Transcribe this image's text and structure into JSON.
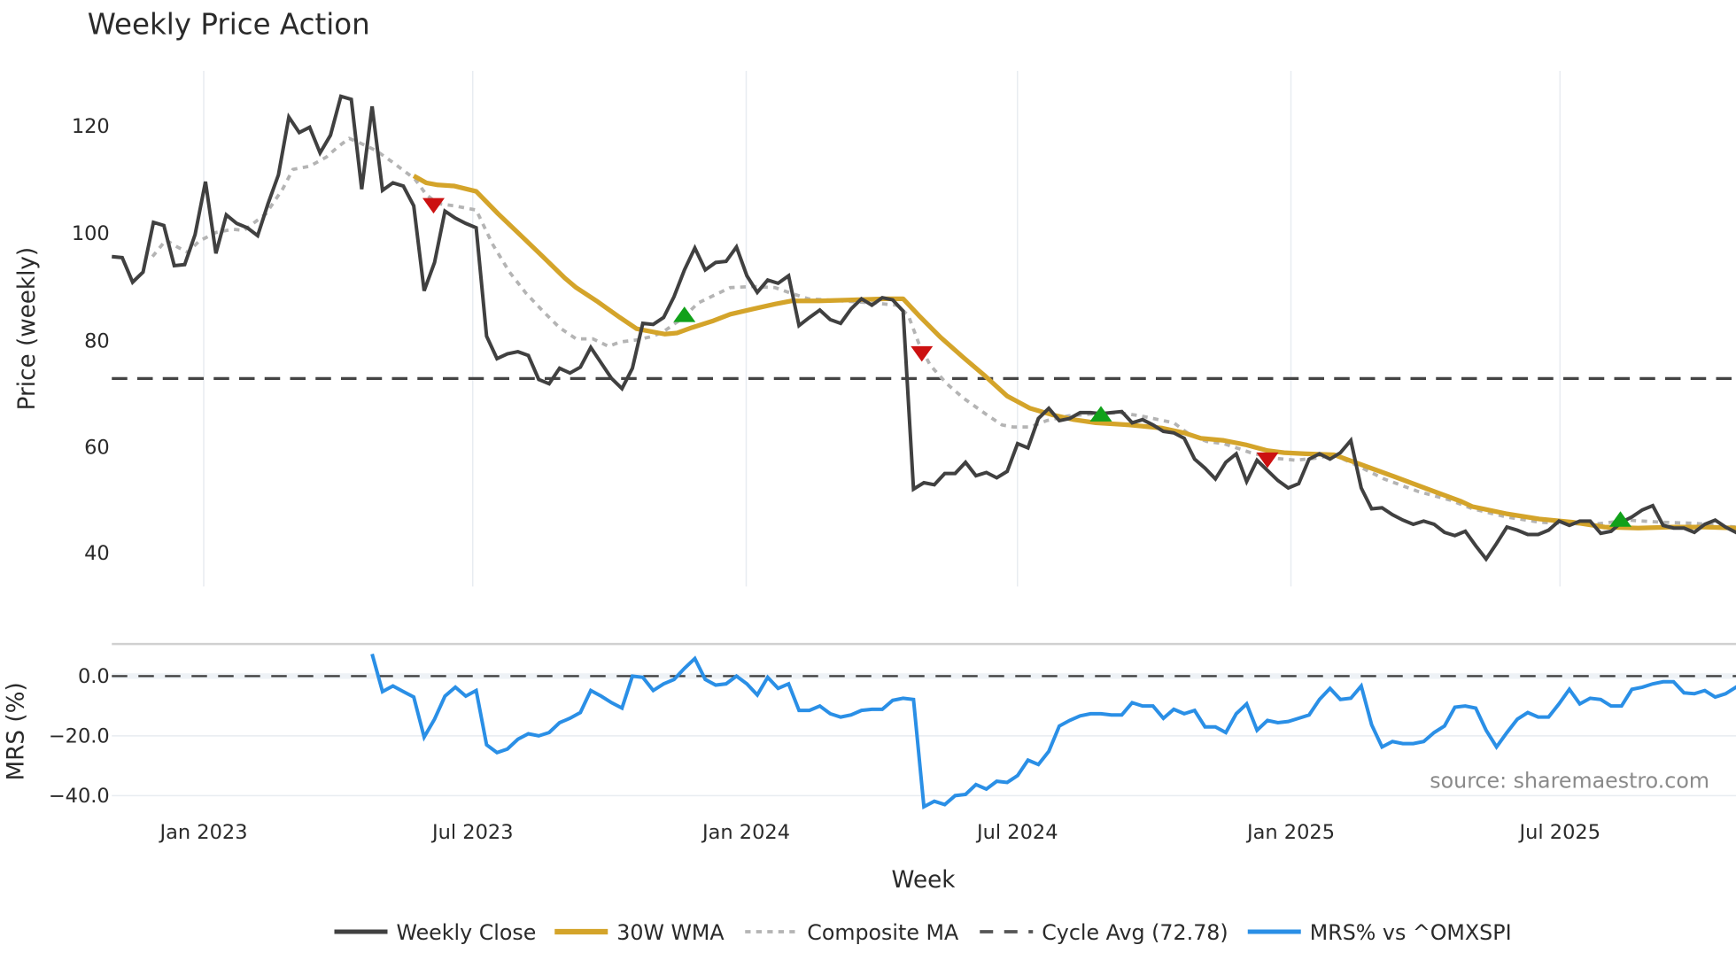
{
  "chart_data": {
    "type": "line",
    "title": "Weekly Price Action",
    "panels": [
      {
        "name": "price",
        "ylabel": "Price (weekly)",
        "yticks": [
          40,
          60,
          80,
          100,
          120
        ],
        "ylim": [
          33,
          130
        ],
        "reference_line": {
          "label": "Cycle Avg (72.78)",
          "value": 72.78,
          "style": "dashed",
          "color": "#444444"
        }
      },
      {
        "name": "mrs",
        "ylabel": "MRS (%)",
        "yticks": [
          0.0,
          -20.0,
          -40.0
        ],
        "ytick_labels": [
          "0.0",
          "−20.0",
          "−40.0"
        ],
        "ylim": [
          -46,
          11
        ],
        "reference_line": {
          "value": 0.0,
          "style": "dashed",
          "color": "#444444"
        }
      }
    ],
    "xlabel": "Week",
    "x_ticks": [
      {
        "label": "Jan 2023",
        "week_index": 8.8
      },
      {
        "label": "Jul 2023",
        "week_index": 34.7
      },
      {
        "label": "Jan 2024",
        "week_index": 60.9
      },
      {
        "label": "Jul 2024",
        "week_index": 87.0
      },
      {
        "label": "Jan 2025",
        "week_index": 113.3
      },
      {
        "label": "Jul 2025",
        "week_index": 139.1
      }
    ],
    "x_range_weeks": [
      0,
      156
    ],
    "series": [
      {
        "name": "Weekly Close",
        "color": "#404040",
        "style": "solid",
        "panel": "price",
        "start_index": 0,
        "values": [
          95.6,
          95.4,
          90.8,
          92.7,
          102.0,
          101.4,
          93.9,
          94.1,
          99.7,
          109.6,
          96.2,
          103.4,
          101.8,
          101.0,
          99.5,
          105.5,
          110.9,
          121.7,
          118.8,
          119.8,
          115.0,
          118.3,
          125.6,
          125.0,
          108.2,
          123.7,
          108.0,
          109.4,
          108.8,
          105.1,
          89.2,
          94.5,
          104.1,
          102.8,
          101.8,
          101.0,
          80.7,
          76.5,
          77.4,
          77.8,
          77.1,
          72.6,
          71.8,
          74.7,
          73.8,
          74.9,
          78.6,
          75.7,
          72.8,
          70.9,
          74.7,
          83.1,
          82.9,
          84.2,
          88.1,
          93.1,
          97.2,
          93.1,
          94.5,
          94.7,
          97.4,
          92.0,
          88.9,
          91.2,
          90.6,
          92.0,
          82.7,
          84.2,
          85.6,
          83.8,
          83.1,
          85.8,
          87.7,
          86.5,
          87.9,
          87.5,
          85.4,
          52.1,
          53.3,
          52.9,
          55.0,
          55.0,
          57.1,
          54.6,
          55.2,
          54.2,
          55.4,
          60.6,
          59.8,
          65.3,
          67.2,
          64.9,
          65.3,
          66.4,
          66.4,
          66.2,
          66.4,
          66.6,
          64.5,
          65.1,
          64.1,
          62.9,
          62.6,
          61.6,
          57.7,
          56.0,
          54.0,
          57.1,
          58.7,
          53.5,
          57.5,
          55.6,
          53.7,
          52.3,
          53.1,
          57.7,
          58.7,
          57.7,
          58.9,
          61.2,
          52.3,
          48.4,
          48.6,
          47.3,
          46.3,
          45.5,
          46.1,
          45.5,
          44.0,
          43.4,
          44.2,
          41.5,
          39.0,
          41.9,
          45.0,
          44.4,
          43.6,
          43.6,
          44.4,
          46.1,
          45.3,
          46.1,
          46.1,
          43.8,
          44.2,
          45.9,
          46.9,
          48.2,
          49.0,
          45.3,
          44.8,
          44.8,
          44.0,
          45.5,
          46.3,
          45.0,
          44.0,
          45.5,
          44.8
        ]
      },
      {
        "name": "30W WMA",
        "color": "#d4a42a",
        "style": "solid",
        "panel": "price",
        "points": [
          [
            29.0,
            110.7
          ],
          [
            30.2,
            109.4
          ],
          [
            31.3,
            109.0
          ],
          [
            32.9,
            108.8
          ],
          [
            35.0,
            107.8
          ],
          [
            37.1,
            103.6
          ],
          [
            39.2,
            99.7
          ],
          [
            41.4,
            95.6
          ],
          [
            43.5,
            91.6
          ],
          [
            44.6,
            89.8
          ],
          [
            46.7,
            87.1
          ],
          [
            48.8,
            84.2
          ],
          [
            50.4,
            82.1
          ],
          [
            52.0,
            81.5
          ],
          [
            53.1,
            81.1
          ],
          [
            54.3,
            81.3
          ],
          [
            55.7,
            82.3
          ],
          [
            57.8,
            83.6
          ],
          [
            59.4,
            84.8
          ],
          [
            61.6,
            85.8
          ],
          [
            63.7,
            86.7
          ],
          [
            65.3,
            87.3
          ],
          [
            67.9,
            87.3
          ],
          [
            71.1,
            87.5
          ],
          [
            74.3,
            87.7
          ],
          [
            76.0,
            87.7
          ],
          [
            77.5,
            84.6
          ],
          [
            79.6,
            80.5
          ],
          [
            81.8,
            76.7
          ],
          [
            83.9,
            73.2
          ],
          [
            86.0,
            69.5
          ],
          [
            88.2,
            67.2
          ],
          [
            90.3,
            66.0
          ],
          [
            92.4,
            65.1
          ],
          [
            94.5,
            64.5
          ],
          [
            97.7,
            64.1
          ],
          [
            100.9,
            63.5
          ],
          [
            103.0,
            62.6
          ],
          [
            104.6,
            61.6
          ],
          [
            106.8,
            61.2
          ],
          [
            108.9,
            60.4
          ],
          [
            111.0,
            59.3
          ],
          [
            112.6,
            58.9
          ],
          [
            114.7,
            58.7
          ],
          [
            117.4,
            58.5
          ],
          [
            120.1,
            56.6
          ],
          [
            123.2,
            54.4
          ],
          [
            126.4,
            52.1
          ],
          [
            129.6,
            49.8
          ],
          [
            130.7,
            48.8
          ],
          [
            133.9,
            47.5
          ],
          [
            137.1,
            46.5
          ],
          [
            140.3,
            45.9
          ],
          [
            143.4,
            45.0
          ],
          [
            146.6,
            44.8
          ],
          [
            149.8,
            45.0
          ],
          [
            153.0,
            45.0
          ],
          [
            156.0,
            44.8
          ]
        ]
      },
      {
        "name": "Composite MA",
        "color": "#b4b4b4",
        "style": "dotted",
        "panel": "price",
        "points": [
          [
            3.9,
            95.6
          ],
          [
            5.2,
            98.7
          ],
          [
            6.3,
            97.4
          ],
          [
            7.3,
            96.4
          ],
          [
            8.4,
            98.5
          ],
          [
            10.0,
            100.1
          ],
          [
            11.6,
            100.7
          ],
          [
            12.7,
            100.5
          ],
          [
            14.8,
            103.6
          ],
          [
            16.4,
            108.2
          ],
          [
            17.4,
            111.9
          ],
          [
            19.0,
            112.5
          ],
          [
            20.6,
            114.2
          ],
          [
            21.7,
            116.1
          ],
          [
            22.8,
            117.7
          ],
          [
            23.8,
            116.9
          ],
          [
            25.4,
            115.4
          ],
          [
            27.0,
            113.2
          ],
          [
            29.1,
            110.1
          ],
          [
            30.2,
            107.2
          ],
          [
            31.3,
            105.5
          ],
          [
            32.9,
            105.1
          ],
          [
            35.0,
            104.3
          ],
          [
            36.6,
            97.8
          ],
          [
            38.2,
            92.7
          ],
          [
            39.8,
            88.7
          ],
          [
            41.4,
            85.4
          ],
          [
            43.0,
            82.3
          ],
          [
            44.6,
            80.2
          ],
          [
            46.2,
            80.2
          ],
          [
            47.7,
            78.8
          ],
          [
            48.8,
            79.6
          ],
          [
            50.4,
            80.0
          ],
          [
            52.0,
            80.7
          ],
          [
            53.1,
            81.7
          ],
          [
            54.9,
            84.2
          ],
          [
            56.3,
            86.9
          ],
          [
            57.8,
            88.3
          ],
          [
            59.4,
            89.8
          ],
          [
            61.6,
            90.0
          ],
          [
            63.7,
            89.8
          ],
          [
            65.3,
            88.7
          ],
          [
            66.9,
            87.7
          ],
          [
            70.1,
            87.3
          ],
          [
            73.3,
            86.9
          ],
          [
            75.4,
            86.5
          ],
          [
            76.5,
            84.6
          ],
          [
            77.5,
            79.4
          ],
          [
            78.6,
            75.3
          ],
          [
            80.2,
            71.8
          ],
          [
            81.8,
            69.1
          ],
          [
            83.9,
            66.2
          ],
          [
            85.5,
            64.1
          ],
          [
            86.6,
            63.7
          ],
          [
            88.2,
            63.7
          ],
          [
            89.8,
            64.9
          ],
          [
            91.9,
            65.8
          ],
          [
            94.5,
            66.2
          ],
          [
            96.7,
            66.4
          ],
          [
            98.8,
            65.8
          ],
          [
            102.0,
            64.5
          ],
          [
            103.6,
            62.2
          ],
          [
            105.2,
            61.0
          ],
          [
            106.8,
            60.6
          ],
          [
            109.4,
            58.9
          ],
          [
            111.5,
            57.9
          ],
          [
            113.7,
            57.5
          ],
          [
            115.8,
            57.9
          ],
          [
            117.4,
            58.5
          ],
          [
            119.5,
            56.6
          ],
          [
            122.2,
            54.0
          ],
          [
            125.4,
            51.7
          ],
          [
            128.6,
            50.0
          ],
          [
            130.7,
            48.4
          ],
          [
            133.9,
            46.9
          ],
          [
            137.1,
            45.9
          ],
          [
            139.2,
            45.7
          ],
          [
            142.4,
            45.5
          ],
          [
            145.6,
            46.3
          ],
          [
            148.8,
            45.9
          ],
          [
            152.0,
            45.7
          ],
          [
            156.0,
            45.0
          ]
        ]
      },
      {
        "name": "MRS% vs ^OMXSPI",
        "color": "#2a8fe6",
        "style": "solid",
        "panel": "mrs",
        "start_index": 25,
        "values": [
          7.4,
          -5.2,
          -3.3,
          -5.2,
          -7.0,
          -20.4,
          -14.4,
          -6.7,
          -3.7,
          -6.7,
          -4.8,
          -23.0,
          -25.6,
          -24.4,
          -21.1,
          -19.3,
          -20.0,
          -18.9,
          -15.6,
          -14.1,
          -12.2,
          -4.8,
          -6.7,
          -8.9,
          -10.7,
          0.0,
          -0.4,
          -4.8,
          -2.6,
          -1.1,
          2.6,
          5.9,
          -1.1,
          -3.0,
          -2.6,
          0.0,
          -2.6,
          -6.3,
          -0.4,
          -4.1,
          -2.6,
          -11.5,
          -11.5,
          -10.0,
          -12.6,
          -13.7,
          -13.0,
          -11.5,
          -11.1,
          -11.1,
          -8.1,
          -7.4,
          -7.8,
          -43.7,
          -41.9,
          -43.0,
          -40.0,
          -39.6,
          -36.3,
          -37.8,
          -35.2,
          -35.6,
          -33.3,
          -28.1,
          -29.6,
          -25.2,
          -16.7,
          -14.8,
          -13.3,
          -12.6,
          -12.6,
          -13.0,
          -13.0,
          -8.9,
          -10.0,
          -10.0,
          -14.1,
          -11.1,
          -12.6,
          -11.5,
          -17.0,
          -17.0,
          -18.9,
          -12.6,
          -9.3,
          -18.1,
          -14.8,
          -15.6,
          -15.2,
          -14.1,
          -13.0,
          -7.8,
          -4.1,
          -7.8,
          -7.4,
          -3.3,
          -16.3,
          -23.7,
          -21.9,
          -22.6,
          -22.6,
          -21.9,
          -18.9,
          -16.7,
          -10.4,
          -10.0,
          -10.7,
          -18.1,
          -23.7,
          -18.9,
          -14.4,
          -12.2,
          -13.7,
          -13.7,
          -9.3,
          -4.4,
          -9.3,
          -7.4,
          -7.8,
          -10.0,
          -10.0,
          -4.4,
          -3.7,
          -2.6,
          -1.9,
          -1.9,
          -5.6,
          -5.9,
          -4.8,
          -7.0,
          -5.9,
          -3.7,
          -5.2,
          -7.8,
          -5.6,
          -8.1
        ]
      }
    ],
    "signals": [
      {
        "type": "sell",
        "shape": "triangle-down",
        "color": "#cc1111",
        "week_index": 30.9,
        "value": 105.1
      },
      {
        "type": "buy",
        "shape": "triangle-up",
        "color": "#11a11a",
        "week_index": 55.0,
        "value": 84.8
      },
      {
        "type": "sell",
        "shape": "triangle-down",
        "color": "#cc1111",
        "week_index": 77.8,
        "value": 77.4
      },
      {
        "type": "buy",
        "shape": "triangle-up",
        "color": "#11a11a",
        "week_index": 95.0,
        "value": 66.2
      },
      {
        "type": "sell",
        "shape": "triangle-down",
        "color": "#cc1111",
        "week_index": 111.0,
        "value": 57.5
      },
      {
        "type": "buy",
        "shape": "triangle-up",
        "color": "#11a11a",
        "week_index": 144.9,
        "value": 46.5
      }
    ],
    "legend": {
      "position": "bottom",
      "entries": [
        {
          "label": "Weekly Close",
          "color": "#404040",
          "style": "solid"
        },
        {
          "label": "30W WMA",
          "color": "#d4a42a",
          "style": "solid"
        },
        {
          "label": "Composite MA",
          "color": "#b4b4b4",
          "style": "dotted"
        },
        {
          "label": "Cycle Avg (72.78)",
          "color": "#555555",
          "style": "dashed"
        },
        {
          "label": "MRS% vs ^OMXSPI",
          "color": "#2a8fe6",
          "style": "solid"
        }
      ]
    },
    "annotation": "source: sharemaestro.com",
    "grid": true
  },
  "labels": {
    "title": "Weekly Price Action",
    "price_ylabel": "Price (weekly)",
    "mrs_ylabel": "MRS (%)",
    "xlabel": "Week",
    "source": "source: sharemaestro.com",
    "price_ticks": [
      "120",
      "100",
      "80",
      "60",
      "40"
    ],
    "mrs_ticks": [
      "0.0",
      "−20.0",
      "−40.0"
    ],
    "x_ticks": [
      "Jan 2023",
      "Jul 2023",
      "Jan 2024",
      "Jul 2024",
      "Jan 2025",
      "Jul 2025"
    ],
    "legend": [
      "Weekly Close",
      "30W WMA",
      "Composite MA",
      "Cycle Avg (72.78)",
      "MRS% vs ^OMXSPI"
    ]
  }
}
